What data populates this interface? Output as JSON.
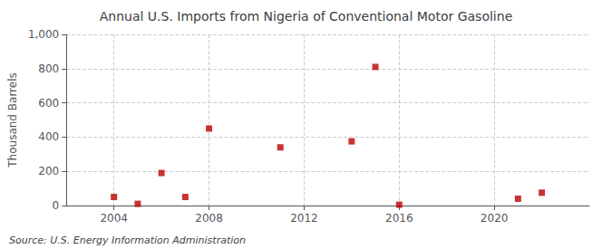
{
  "chart_data": {
    "type": "scatter",
    "title": "Annual U.S. Imports from Nigeria of Conventional Motor Gasoline",
    "ylabel": "Thousand Barrels",
    "annotations": [
      "Source: U.S. Energy Information Administration"
    ],
    "x": [
      2004,
      2005,
      2006,
      2007,
      2008,
      2011,
      2014,
      2015,
      2016,
      2021,
      2022
    ],
    "values": [
      50,
      10,
      190,
      50,
      450,
      340,
      375,
      810,
      5,
      40,
      75
    ],
    "color": "#bb0000",
    "marker": "square",
    "xlim": [
      2002,
      2024
    ],
    "xticks": [
      2004,
      2008,
      2012,
      2016,
      2020
    ],
    "ylim": [
      0,
      1000
    ],
    "yticks": [
      0,
      200,
      400,
      600,
      800,
      {
        "value": 1000,
        "label": "1,000"
      }
    ],
    "grid": true
  }
}
